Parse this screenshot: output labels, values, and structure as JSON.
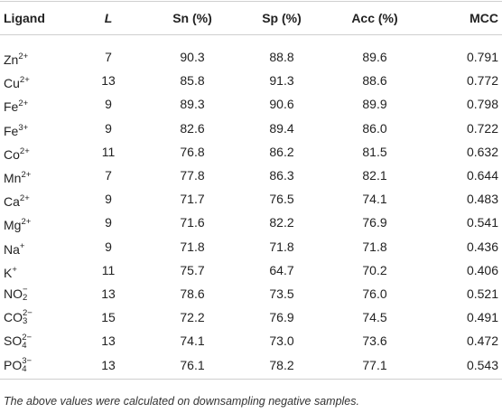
{
  "table": {
    "header": [
      "Ligand",
      "L",
      "Sn (%)",
      "Sp (%)",
      "Acc (%)",
      "MCC"
    ],
    "rows": [
      {
        "ligand": {
          "base": "Zn",
          "sup": "2+"
        },
        "cells": [
          "7",
          "90.3",
          "88.8",
          "89.6",
          "0.791"
        ]
      },
      {
        "ligand": {
          "base": "Cu",
          "sup": "2+"
        },
        "cells": [
          "13",
          "85.8",
          "91.3",
          "88.6",
          "0.772"
        ]
      },
      {
        "ligand": {
          "base": "Fe",
          "sup": "2+"
        },
        "cells": [
          "9",
          "89.3",
          "90.6",
          "89.9",
          "0.798"
        ]
      },
      {
        "ligand": {
          "base": "Fe",
          "sup": "3+"
        },
        "cells": [
          "9",
          "82.6",
          "89.4",
          "86.0",
          "0.722"
        ]
      },
      {
        "ligand": {
          "base": "Co",
          "sup": "2+"
        },
        "cells": [
          "11",
          "76.8",
          "86.2",
          "81.5",
          "0.632"
        ]
      },
      {
        "ligand": {
          "base": "Mn",
          "sup": "2+"
        },
        "cells": [
          "7",
          "77.8",
          "86.3",
          "82.1",
          "0.644"
        ]
      },
      {
        "ligand": {
          "base": "Ca",
          "sup": "2+"
        },
        "cells": [
          "9",
          "71.7",
          "76.5",
          "74.1",
          "0.483"
        ]
      },
      {
        "ligand": {
          "base": "Mg",
          "sup": "2+"
        },
        "cells": [
          "9",
          "71.6",
          "82.2",
          "76.9",
          "0.541"
        ]
      },
      {
        "ligand": {
          "base": "Na",
          "sup": "+"
        },
        "cells": [
          "9",
          "71.8",
          "71.8",
          "71.8",
          "0.436"
        ]
      },
      {
        "ligand": {
          "base": "K",
          "sup": "+"
        },
        "cells": [
          "11",
          "75.7",
          "64.7",
          "70.2",
          "0.406"
        ]
      },
      {
        "ligand": {
          "base": "NO",
          "sub": "2",
          "sup": "−"
        },
        "cells": [
          "13",
          "78.6",
          "73.5",
          "76.0",
          "0.521"
        ]
      },
      {
        "ligand": {
          "base": "CO",
          "sub": "3",
          "sup": "2−"
        },
        "cells": [
          "15",
          "72.2",
          "76.9",
          "74.5",
          "0.491"
        ]
      },
      {
        "ligand": {
          "base": "SO",
          "sub": "4",
          "sup": "2−"
        },
        "cells": [
          "13",
          "74.1",
          "73.0",
          "73.6",
          "0.472"
        ]
      },
      {
        "ligand": {
          "base": "PO",
          "sub": "4",
          "sup": "3−"
        },
        "cells": [
          "13",
          "76.1",
          "78.2",
          "77.1",
          "0.543"
        ]
      }
    ],
    "footnote": "The above values were calculated on downsampling negative samples."
  }
}
